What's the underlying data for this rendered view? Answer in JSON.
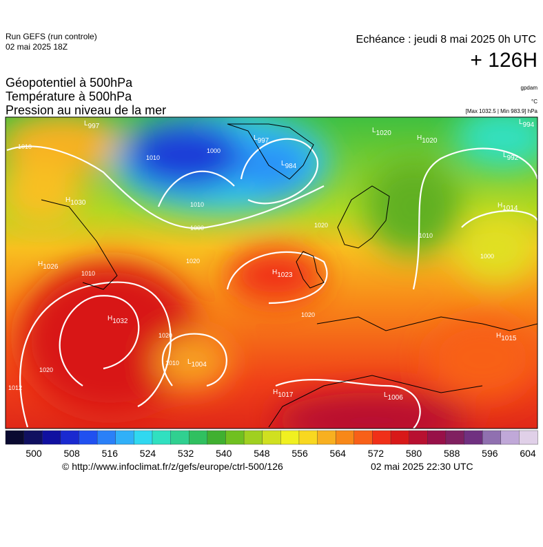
{
  "header": {
    "run": "Run GEFS (run controle)",
    "run_date": "02 mai 2025 18Z",
    "echeance": "Echéance : jeudi 8 mai 2025 0h UTC",
    "lead": "+ 126H",
    "titles": [
      "Géopotentiel à 500hPa",
      "Température à 500hPa",
      "Pression au niveau de la mer"
    ],
    "unit_geo": "gpdam",
    "unit_temp": "°C",
    "unit_press": "[Max 1032.5 | Min 983.9] hPa"
  },
  "centers": [
    {
      "type": "L",
      "value": "997"
    },
    {
      "type": "L",
      "value": "997"
    },
    {
      "type": "L",
      "value": "984"
    },
    {
      "type": "L",
      "value": "1020"
    },
    {
      "type": "H",
      "value": "1020"
    },
    {
      "type": "L",
      "value": "994"
    },
    {
      "type": "L",
      "value": "992"
    },
    {
      "type": "H",
      "value": "1030"
    },
    {
      "type": "H",
      "value": "1014"
    },
    {
      "type": "H",
      "value": "1026"
    },
    {
      "type": "H",
      "value": "1023"
    },
    {
      "type": "H",
      "value": "1032"
    },
    {
      "type": "H",
      "value": "1015"
    },
    {
      "type": "L",
      "value": "1004"
    },
    {
      "type": "H",
      "value": "1017"
    },
    {
      "type": "L",
      "value": "1006"
    }
  ],
  "isobar_labels": [
    "1010",
    "1010",
    "1000",
    "1010",
    "1000",
    "1020",
    "1020",
    "1020",
    "1020",
    "1012",
    "1020",
    "1010",
    "1010",
    "1000",
    "1010"
  ],
  "colorbar": {
    "ticks": [
      "500",
      "508",
      "516",
      "524",
      "532",
      "540",
      "548",
      "556",
      "564",
      "572",
      "580",
      "588",
      "596",
      "604"
    ],
    "colors": [
      "#0a0a30",
      "#101060",
      "#1010a0",
      "#1a2ad0",
      "#2050f0",
      "#2a80f8",
      "#30b0f8",
      "#30d8f0",
      "#30e0c0",
      "#30d090",
      "#30c060",
      "#40b030",
      "#70c020",
      "#a0d020",
      "#d0e020",
      "#f0f020",
      "#f8d820",
      "#f8b020",
      "#f88818",
      "#f86018",
      "#f03018",
      "#d81818",
      "#b81030",
      "#981048",
      "#802060",
      "#703080",
      "#9070b0",
      "#c0a8d8",
      "#e0d0e8"
    ]
  },
  "footer": {
    "source": "© http://www.infoclimat.fr/z/gefs/europe/ctrl-500/126",
    "issued": "02 mai 2025 22:30 UTC"
  }
}
